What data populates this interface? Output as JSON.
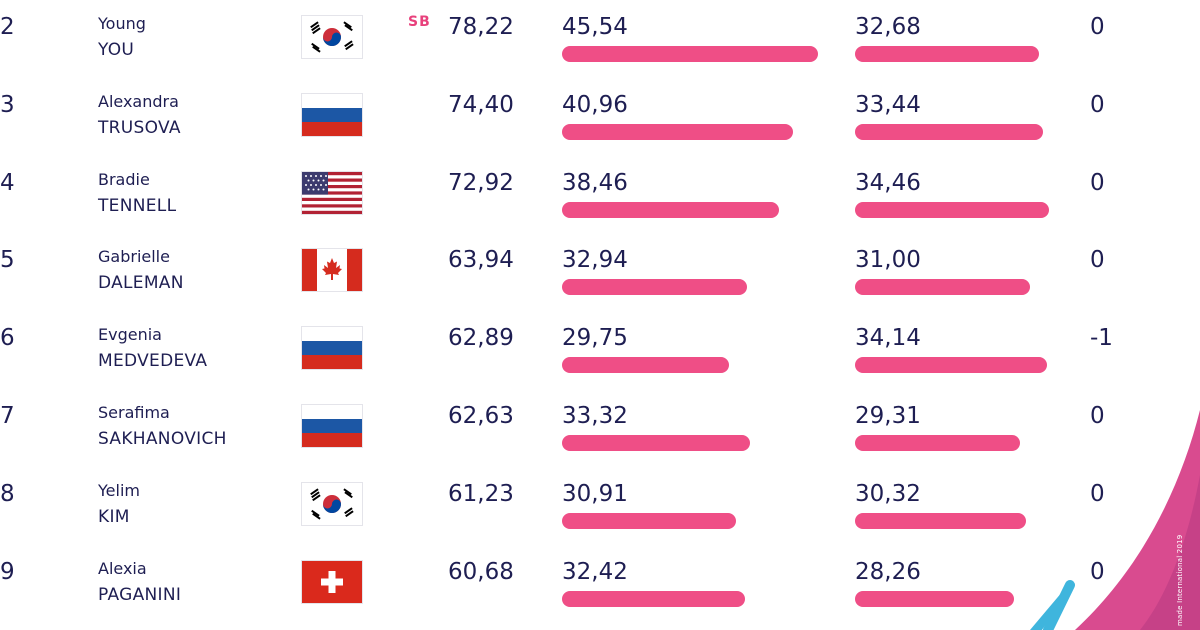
{
  "colors": {
    "text": "#1e1e52",
    "bar": "#ef4e86",
    "accent": "#e8417c",
    "decor_pink": "#d94b8f",
    "decor_blue": "#3fb5dd"
  },
  "scale": {
    "max_score": 50
  },
  "skaters": [
    {
      "rank": "2",
      "first_name": "Young",
      "last_name": "YOU",
      "flag_icon": "korea-flag-icon",
      "badge": "SB",
      "total": "78,22",
      "tes": "45,54",
      "tes_value": 45.54,
      "pcs": "32,68",
      "pcs_value": 32.68,
      "deductions": "0"
    },
    {
      "rank": "3",
      "first_name": "Alexandra",
      "last_name": "TRUSOVA",
      "flag_icon": "russia-flag-icon",
      "badge": "",
      "total": "74,40",
      "tes": "40,96",
      "tes_value": 40.96,
      "pcs": "33,44",
      "pcs_value": 33.44,
      "deductions": "0"
    },
    {
      "rank": "4",
      "first_name": "Bradie",
      "last_name": "TENNELL",
      "flag_icon": "usa-flag-icon",
      "badge": "",
      "total": "72,92",
      "tes": "38,46",
      "tes_value": 38.46,
      "pcs": "34,46",
      "pcs_value": 34.46,
      "deductions": "0"
    },
    {
      "rank": "5",
      "first_name": "Gabrielle",
      "last_name": "DALEMAN",
      "flag_icon": "canada-flag-icon",
      "badge": "",
      "total": "63,94",
      "tes": "32,94",
      "tes_value": 32.94,
      "pcs": "31,00",
      "pcs_value": 31.0,
      "deductions": "0"
    },
    {
      "rank": "6",
      "first_name": "Evgenia",
      "last_name": "MEDVEDEVA",
      "flag_icon": "russia-flag-icon",
      "badge": "",
      "total": "62,89",
      "tes": "29,75",
      "tes_value": 29.75,
      "pcs": "34,14",
      "pcs_value": 34.14,
      "deductions": "-1"
    },
    {
      "rank": "7",
      "first_name": "Serafima",
      "last_name": "SAKHANOVICH",
      "flag_icon": "russia-flag-icon",
      "badge": "",
      "total": "62,63",
      "tes": "33,32",
      "tes_value": 33.32,
      "pcs": "29,31",
      "pcs_value": 29.31,
      "deductions": "0"
    },
    {
      "rank": "8",
      "first_name": "Yelim",
      "last_name": "KIM",
      "flag_icon": "korea-flag-icon",
      "badge": "",
      "total": "61,23",
      "tes": "30,91",
      "tes_value": 30.91,
      "pcs": "30,32",
      "pcs_value": 30.32,
      "deductions": "0"
    },
    {
      "rank": "9",
      "first_name": "Alexia",
      "last_name": "PAGANINI",
      "flag_icon": "switzerland-flag-icon",
      "badge": "",
      "total": "60,68",
      "tes": "32,42",
      "tes_value": 32.42,
      "pcs": "28,26",
      "pcs_value": 28.26,
      "deductions": "0"
    }
  ],
  "footer": {
    "copyright": "made International 2019"
  }
}
